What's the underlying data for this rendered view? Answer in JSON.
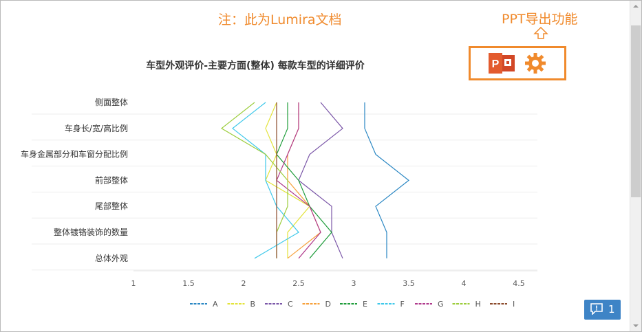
{
  "note": "注：此为Lumira文档",
  "ppt_label": "PPT导出功能",
  "icons": {
    "arrow": "arrow-up-outline-icon",
    "ppt": "powerpoint-icon",
    "gear": "gear-icon",
    "comment": "comment-icon"
  },
  "comment_count": "1",
  "colors": {
    "accent": "#f08a2c",
    "comment_button": "#3e84c6"
  },
  "chart_data": {
    "type": "line",
    "orientation": "horizontal",
    "title": "车型外观评价-主要方面(整体) 每款车型的详细评价",
    "categories": [
      "侧面整体",
      "车身长/宽/高比例",
      "车身金属部分和车窗分配比例",
      "前部整体",
      "尾部整体",
      "整体镀铬装饰的数量",
      "总体外观"
    ],
    "xlim": [
      1,
      4.5
    ],
    "xticks": [
      "1",
      "1.5",
      "2",
      "2.5",
      "3",
      "3.5",
      "4",
      "4.5"
    ],
    "grid": true,
    "legend_position": "bottom",
    "series": [
      {
        "name": "A",
        "color": "#2a87c3",
        "values": [
          3.1,
          3.1,
          3.2,
          3.5,
          3.2,
          3.3,
          3.3
        ]
      },
      {
        "name": "B",
        "color": "#e3e33a",
        "values": [
          2.3,
          2.2,
          2.3,
          2.2,
          2.6,
          2.4,
          2.4
        ]
      },
      {
        "name": "C",
        "color": "#7b57a8",
        "values": [
          2.7,
          2.9,
          2.6,
          2.5,
          2.8,
          2.8,
          2.9
        ]
      },
      {
        "name": "D",
        "color": "#f7a13b",
        "values": [
          2.5,
          2.5,
          2.4,
          2.4,
          2.6,
          2.7,
          2.4
        ]
      },
      {
        "name": "E",
        "color": "#1e9c3a",
        "values": [
          2.4,
          2.4,
          2.3,
          2.5,
          2.6,
          2.8,
          2.6
        ]
      },
      {
        "name": "F",
        "color": "#3ec8ea",
        "values": [
          2.2,
          1.9,
          2.2,
          2.2,
          2.3,
          2.5,
          2.1
        ]
      },
      {
        "name": "G",
        "color": "#b03a8c",
        "values": [
          2.5,
          2.5,
          2.4,
          2.3,
          2.6,
          2.7,
          2.5
        ]
      },
      {
        "name": "H",
        "color": "#9ccd3c",
        "values": [
          2.1,
          1.8,
          2.2,
          2.4,
          2.4,
          2.3,
          2.3
        ]
      },
      {
        "name": "I",
        "color": "#8b4a2b",
        "values": [
          2.3,
          2.3,
          2.3,
          2.3,
          2.3,
          2.3,
          2.3
        ]
      }
    ]
  }
}
